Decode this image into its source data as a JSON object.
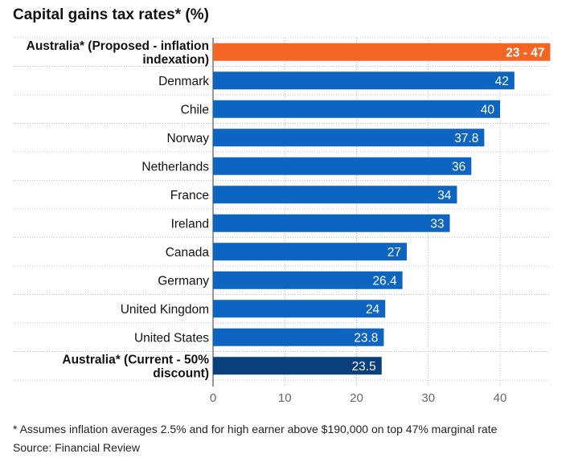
{
  "chart_data": {
    "type": "bar",
    "orientation": "horizontal",
    "title": "Capital gains tax rates* (%)",
    "categories": [
      "Australia* (Proposed - inflation indexation)",
      "Denmark",
      "Chile",
      "Norway",
      "Netherlands",
      "France",
      "Ireland",
      "Canada",
      "Germany",
      "United Kingdom",
      "United States",
      "Australia* (Current - 50% discount)"
    ],
    "category_lines": [
      [
        "Australia* (Proposed - inflation",
        "indexation)"
      ],
      [
        "Denmark"
      ],
      [
        "Chile"
      ],
      [
        "Norway"
      ],
      [
        "Netherlands"
      ],
      [
        "France"
      ],
      [
        "Ireland"
      ],
      [
        "Canada"
      ],
      [
        "Germany"
      ],
      [
        "United Kingdom"
      ],
      [
        "United States"
      ],
      [
        "Australia* (Current - 50%",
        "discount)"
      ]
    ],
    "values": [
      47,
      42,
      40,
      37.8,
      36,
      34,
      33,
      27,
      26.4,
      24,
      23.8,
      23.5
    ],
    "range_low": [
      23,
      null,
      null,
      null,
      null,
      null,
      null,
      null,
      null,
      null,
      null,
      null
    ],
    "labels": [
      "23 - 47",
      "42",
      "40",
      "37.8",
      "36",
      "34",
      "33",
      "27",
      "26.4",
      "24",
      "23.8",
      "23.5"
    ],
    "bold_categories": [
      0,
      11
    ],
    "colors": [
      "#f26522",
      "#0d64c1",
      "#0d64c1",
      "#0d64c1",
      "#0d64c1",
      "#0d64c1",
      "#0d64c1",
      "#0d64c1",
      "#0d64c1",
      "#0d64c1",
      "#0d64c1",
      "#0a3f7e"
    ],
    "xticks": [
      0,
      10,
      20,
      30,
      40
    ],
    "xlim": [
      0,
      47
    ],
    "grid": true,
    "footnote": "* Assumes inflation averages 2.5% and for high earner above $190,000 on top 47% marginal rate",
    "source": "Source: Financial Review"
  }
}
